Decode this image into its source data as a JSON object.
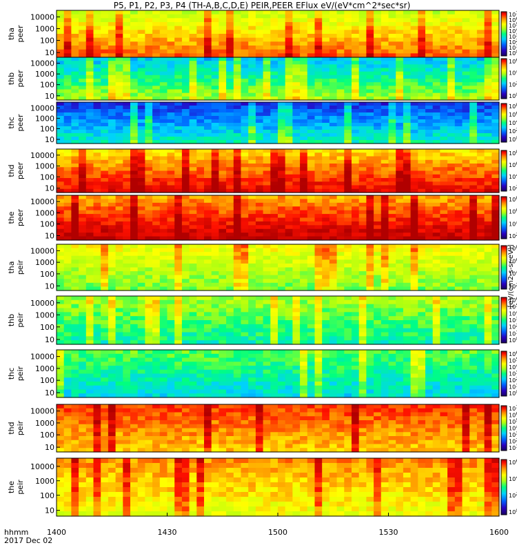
{
  "title": "P5, P1, P2, P3, P4 (TH-A,B,C,D,E) PEIR,PEER EFlux eV/(eV*cm^2*sec*sr)",
  "colorbar_label": "[eV/(cm2-s-sr-eV)]",
  "colorbar_label_rotated": "(eV/(cm2-s-sr-eV))",
  "time_axis": {
    "label_line1": "hhmm",
    "label_line2": "2017 Dec 02",
    "ticks": [
      "1400",
      "1430",
      "1500",
      "1530",
      "1600"
    ],
    "range": [
      "14:00",
      "16:00"
    ]
  },
  "chart_data": [
    {
      "type": "heatmap",
      "panel": "tha peer",
      "ylabel": [
        "tha",
        "peer"
      ],
      "y_ticks": [
        "10000",
        "1000",
        "100",
        "10"
      ],
      "y_scale": "log",
      "colorbar_ticks": [
        "10^7",
        "10^6",
        "10^5",
        "10^4",
        "10^3",
        "10^2",
        "10^1",
        "10^0"
      ],
      "colors": {
        "ramp": [
          "#2a00a0",
          "#0040ff",
          "#00c8ff",
          "#00ff90",
          "#a0ff20",
          "#ffff00",
          "#ffb000",
          "#ff3000",
          "#c00000"
        ]
      },
      "dominant_level": 0.72
    },
    {
      "type": "heatmap",
      "panel": "thb peer",
      "ylabel": [
        "thb",
        "peer"
      ],
      "y_ticks": [
        "10000",
        "1000",
        "100",
        "10"
      ],
      "y_scale": "log",
      "colorbar_ticks": [
        "10^6",
        "10^4",
        "10^2",
        "10^0"
      ],
      "dominant_level": 0.45
    },
    {
      "type": "heatmap",
      "panel": "thc peer",
      "ylabel": [
        "thc",
        "peer"
      ],
      "y_ticks": [
        "10000",
        "1000",
        "100",
        "10"
      ],
      "y_scale": "log",
      "colorbar_ticks": [
        "10^8",
        "10^6",
        "10^4",
        "10^2",
        "10^0"
      ],
      "dominant_level": 0.3
    },
    {
      "type": "heatmap",
      "panel": "thd peer",
      "ylabel": [
        "thd",
        "peer"
      ],
      "y_ticks": [
        "10000",
        "1000",
        "100",
        "10"
      ],
      "y_scale": "log",
      "colorbar_ticks": [
        "10^8",
        "10^6",
        "10^4",
        "10^2"
      ],
      "dominant_level": 0.82
    },
    {
      "type": "heatmap",
      "panel": "the peer",
      "ylabel": [
        "the",
        "peer"
      ],
      "y_ticks": [
        "10000",
        "1000",
        "100",
        "10"
      ],
      "y_scale": "log",
      "colorbar_ticks": [
        "10^8",
        "10^6",
        "10^4",
        "10^2"
      ],
      "dominant_level": 0.88
    },
    {
      "type": "heatmap",
      "panel": "tha peir",
      "ylabel": [
        "tha",
        "peir"
      ],
      "y_ticks": [
        "10000",
        "1000",
        "100",
        "10"
      ],
      "y_scale": "log",
      "colorbar_ticks": [
        "10^8",
        "10^6",
        "10^4",
        "10^2"
      ],
      "dominant_level": 0.58
    },
    {
      "type": "heatmap",
      "panel": "thb peir",
      "ylabel": [
        "thb",
        "peir"
      ],
      "y_ticks": [
        "10000",
        "1000",
        "100",
        "10"
      ],
      "y_scale": "log",
      "colorbar_ticks": [
        "10^6",
        "10^5",
        "10^4",
        "10^3",
        "10^2",
        "10^1",
        "10^0"
      ],
      "dominant_level": 0.48
    },
    {
      "type": "heatmap",
      "panel": "thc peir",
      "ylabel": [
        "thc",
        "peir"
      ],
      "y_ticks": [
        "10000",
        "1000",
        "100",
        "10"
      ],
      "y_scale": "log",
      "colorbar_ticks": [
        "10^6",
        "10^5",
        "10^4",
        "10^3",
        "10^2",
        "10^1",
        "10^0"
      ],
      "dominant_level": 0.42
    },
    {
      "type": "heatmap",
      "panel": "thd peir",
      "ylabel": [
        "thd",
        "peir"
      ],
      "y_ticks": [
        "10000",
        "1000",
        "100",
        "10"
      ],
      "y_scale": "log",
      "colorbar_ticks": [
        "10^7",
        "10^6",
        "10^5",
        "10^4",
        "10^3",
        "10^2",
        "10^1"
      ],
      "dominant_level": 0.78
    },
    {
      "type": "heatmap",
      "panel": "the peir",
      "ylabel": [
        "the",
        "peir"
      ],
      "y_ticks": [
        "10000",
        "1000",
        "100",
        "10"
      ],
      "y_scale": "log",
      "colorbar_ticks": [
        "10^6",
        "10^4",
        "10^2",
        "10^0"
      ],
      "dominant_level": 0.7
    }
  ]
}
